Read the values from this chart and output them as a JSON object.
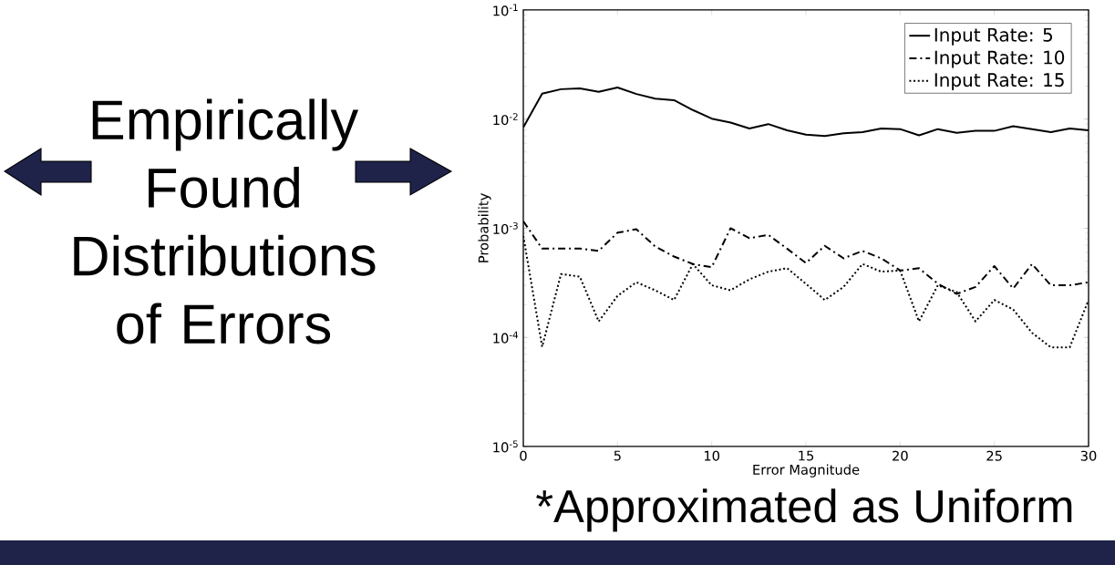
{
  "chart_data": {
    "type": "line",
    "xlabel": "Error Magnitude",
    "ylabel": "Probability",
    "annotations": [
      "Empirically Found Distributions of Errors",
      "*Approximated as Uniform"
    ],
    "x": [
      0,
      1,
      2,
      3,
      4,
      5,
      6,
      7,
      8,
      9,
      10,
      11,
      12,
      13,
      14,
      15,
      16,
      17,
      18,
      19,
      20,
      21,
      22,
      23,
      24,
      25,
      26,
      27,
      28,
      29,
      30
    ],
    "series": [
      {
        "name": "Input Rate: 5",
        "color": "#000000",
        "line_style": "solid",
        "values": [
          0.0084,
          0.0171,
          0.0188,
          0.0191,
          0.0178,
          0.0195,
          0.017,
          0.0154,
          0.0149,
          0.0121,
          0.0101,
          0.0093,
          0.0082,
          0.009,
          0.0079,
          0.0072,
          0.007,
          0.0074,
          0.0076,
          0.0082,
          0.0081,
          0.0071,
          0.0081,
          0.0075,
          0.0078,
          0.0078,
          0.0086,
          0.0081,
          0.0076,
          0.0082,
          0.0079
        ]
      },
      {
        "name": "Input Rate: 10",
        "color": "#000000",
        "line_style": "dashdot",
        "values": [
          0.00116,
          0.00065,
          0.00065,
          0.00065,
          0.00062,
          0.00091,
          0.00098,
          0.00068,
          0.00055,
          0.00047,
          0.00044,
          0.001,
          0.00081,
          0.00087,
          0.00065,
          0.00048,
          0.00069,
          0.00053,
          0.00062,
          0.00053,
          0.00041,
          0.00043,
          0.00031,
          0.00025,
          0.00029,
          0.00045,
          0.00028,
          0.00047,
          0.0003,
          0.0003,
          0.00032
        ]
      },
      {
        "name": "Input Rate: 15",
        "color": "#000000",
        "line_style": "dotted",
        "values": [
          0.00085,
          8.2e-05,
          0.00038,
          0.00036,
          0.00014,
          0.00024,
          0.00032,
          0.00027,
          0.00022,
          0.00047,
          0.0003,
          0.00027,
          0.00034,
          0.0004,
          0.00043,
          0.00031,
          0.00022,
          0.00029,
          0.00047,
          0.0004,
          0.00041,
          0.00014,
          0.0003,
          0.00026,
          0.00014,
          0.00022,
          0.00018,
          0.00011,
          8.1e-05,
          8.1e-05,
          0.00022
        ]
      }
    ],
    "xlim": [
      0,
      30
    ],
    "ylim": [
      1e-05,
      0.1
    ],
    "log": "y",
    "xticks": [
      0,
      5,
      10,
      15,
      20,
      25,
      30
    ],
    "yticks": [
      {
        "value": 1e-05,
        "label": "10$^{-5}$"
      },
      {
        "value": 0.0001,
        "label": "10$^{-4}$"
      },
      {
        "value": 0.001,
        "label": "10$^{-3}$"
      },
      {
        "value": 0.01,
        "label": "10$^{-2}$"
      },
      {
        "value": 0.1,
        "label": "10$^{-1}$"
      }
    ],
    "legend": "top right",
    "grid": false,
    "marker": "none"
  }
}
